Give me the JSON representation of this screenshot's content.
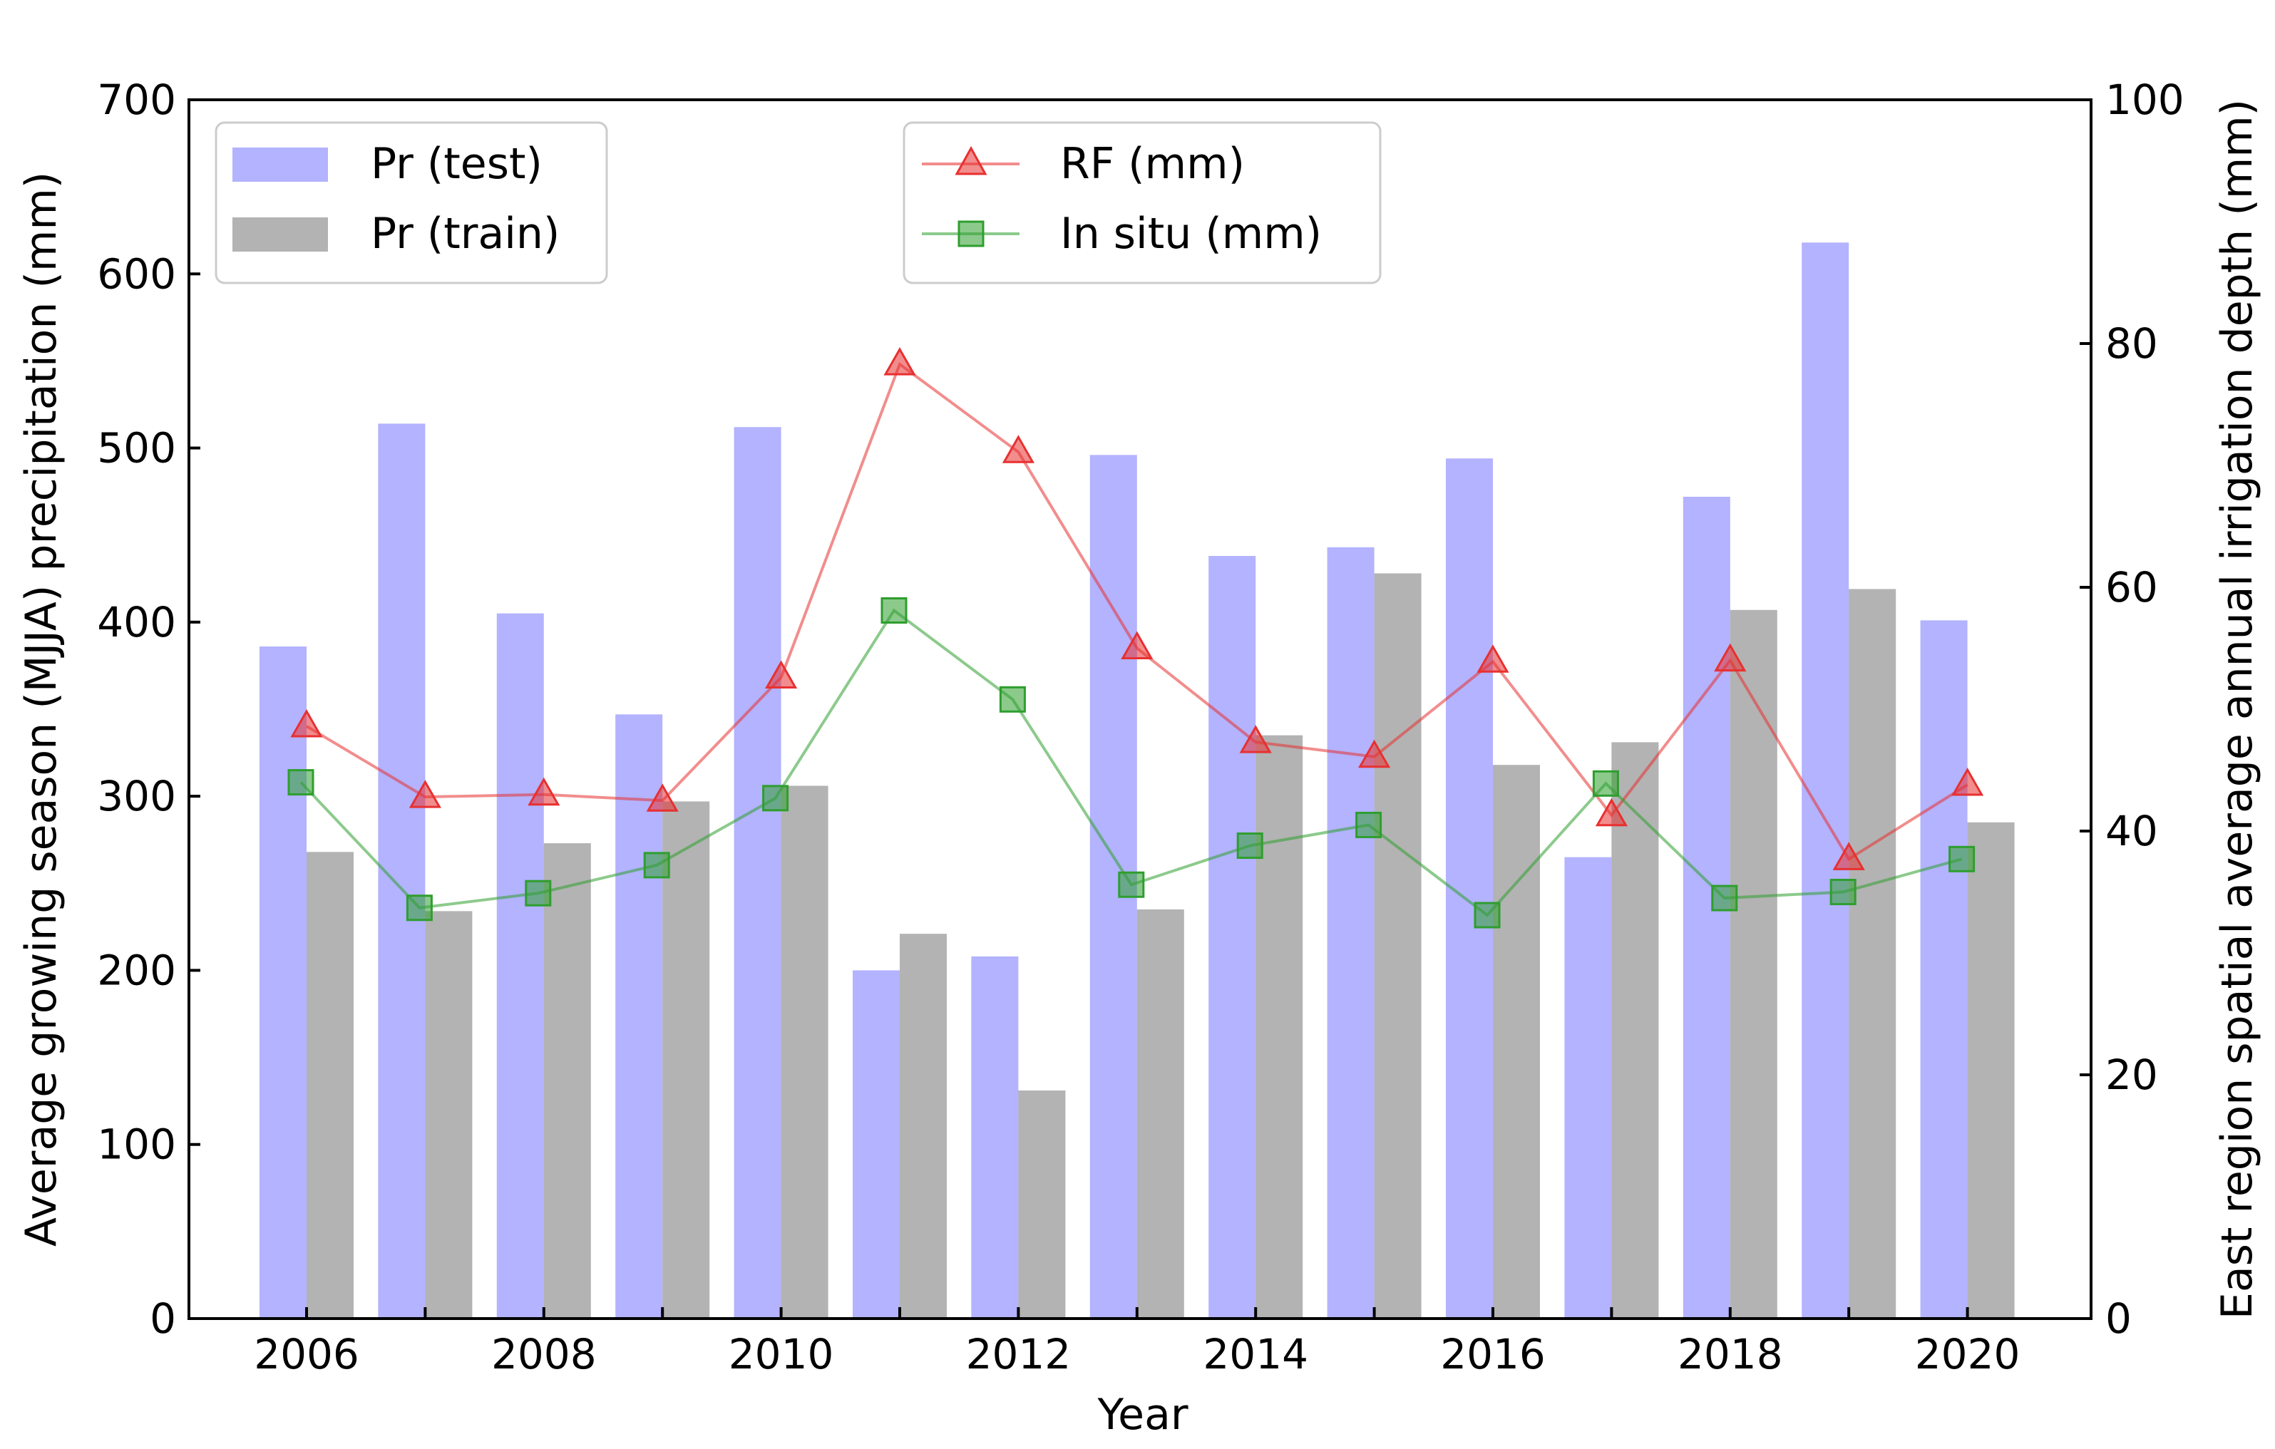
{
  "chart_data": {
    "type": "bar",
    "x": [
      2006,
      2007,
      2008,
      2009,
      2010,
      2011,
      2012,
      2013,
      2014,
      2015,
      2016,
      2017,
      2018,
      2019,
      2020
    ],
    "x_tick_labels": [
      "2006",
      "2008",
      "2010",
      "2012",
      "2014",
      "2016",
      "2018",
      "2020"
    ],
    "xlabel": "Year",
    "ylabel_left": "Average growing season (MJJA) precipitation (mm)",
    "ylabel_right": "East region spatial average annual irrigation depth (mm)",
    "ylim_left": [
      0,
      700
    ],
    "ylim_right": [
      0,
      100
    ],
    "yticks_left": [
      "0",
      "100",
      "200",
      "300",
      "400",
      "500",
      "600",
      "700"
    ],
    "yticks_right": [
      "0",
      "20",
      "40",
      "60",
      "80",
      "100"
    ],
    "bar_series": [
      {
        "name": "Pr (test)",
        "color": "#8080ff",
        "values": [
          386,
          514,
          405,
          347,
          512,
          200,
          208,
          496,
          438,
          443,
          494,
          265,
          472,
          618,
          401
        ]
      },
      {
        "name": "Pr (train)",
        "color": "#808080",
        "values": [
          268,
          234,
          273,
          297,
          306,
          221,
          131,
          235,
          335,
          428,
          318,
          331,
          407,
          419,
          285
        ]
      }
    ],
    "line_series": [
      {
        "name": "RF (mm)",
        "color": "#e83030",
        "marker": "triangle",
        "axis": "right",
        "values": [
          48.6,
          42.8,
          43.0,
          42.5,
          52.6,
          78.3,
          71.1,
          55.0,
          47.3,
          46.1,
          53.9,
          41.3,
          54.0,
          37.7,
          43.8
        ]
      },
      {
        "name": "In situ (mm)",
        "color": "#2e9e2e",
        "marker": "square",
        "axis": "right",
        "values": [
          44.0,
          33.7,
          34.9,
          37.2,
          42.7,
          58.1,
          50.8,
          35.6,
          38.8,
          40.5,
          33.1,
          43.9,
          34.5,
          35.0,
          37.7
        ]
      }
    ],
    "legends": [
      {
        "position": "top-left",
        "entries": [
          "Pr (test)",
          "Pr (train)"
        ]
      },
      {
        "position": "top-center",
        "entries": [
          "RF (mm)",
          "In situ (mm)"
        ]
      }
    ],
    "grid": false
  }
}
